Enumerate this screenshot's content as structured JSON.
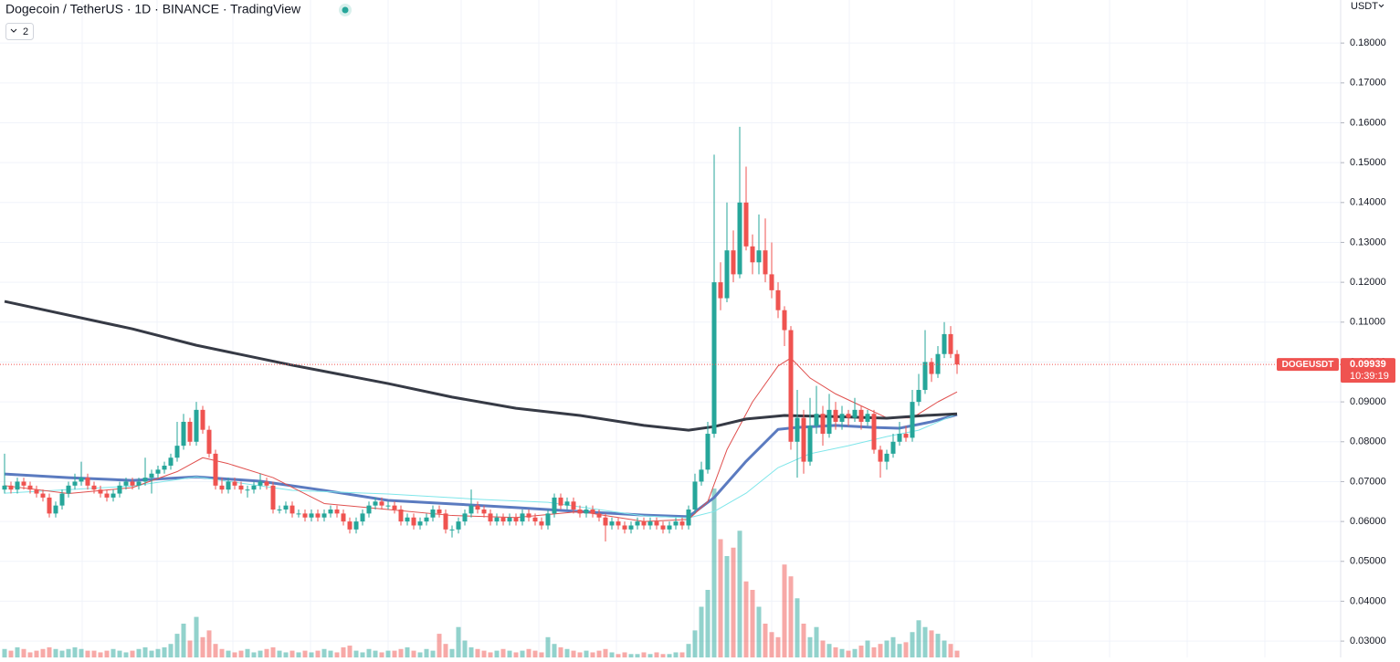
{
  "chart_data": {
    "type": "candlestick",
    "title": "Dogecoin / TetherUS · 1D · BINANCE · TradingView",
    "indicator_count": 2,
    "currency": "USDT",
    "symbol": "DOGEUSDT",
    "last_price": 0.09939,
    "countdown": "10:39:19",
    "up_color": "#26a69a",
    "down_color": "#ef5350",
    "ylim": [
      0.0259,
      0.1908
    ],
    "yticks": [
      {
        "value": 0.03,
        "label": "0.03000"
      },
      {
        "value": 0.04,
        "label": "0.04000"
      },
      {
        "value": 0.05,
        "label": "0.05000"
      },
      {
        "value": 0.06,
        "label": "0.06000"
      },
      {
        "value": 0.07,
        "label": "0.07000"
      },
      {
        "value": 0.08,
        "label": "0.08000"
      },
      {
        "value": 0.09,
        "label": "0.09000"
      },
      {
        "value": 0.1,
        "label": "0.10000"
      },
      {
        "value": 0.11,
        "label": "0.11000"
      },
      {
        "value": 0.12,
        "label": "0.12000"
      },
      {
        "value": 0.13,
        "label": "0.13000"
      },
      {
        "value": 0.14,
        "label": "0.14000"
      },
      {
        "value": 0.15,
        "label": "0.15000"
      },
      {
        "value": 0.16,
        "label": "0.16000"
      },
      {
        "value": 0.17,
        "label": "0.17000"
      },
      {
        "value": 0.18,
        "label": "0.18000"
      }
    ],
    "grid": true,
    "ohlc": [
      [
        0.068,
        0.077,
        0.067,
        0.069
      ],
      [
        0.069,
        0.07,
        0.067,
        0.068
      ],
      [
        0.068,
        0.071,
        0.067,
        0.07
      ],
      [
        0.07,
        0.071,
        0.068,
        0.069
      ],
      [
        0.069,
        0.07,
        0.067,
        0.068
      ],
      [
        0.068,
        0.069,
        0.066,
        0.067
      ],
      [
        0.067,
        0.068,
        0.065,
        0.066
      ],
      [
        0.066,
        0.067,
        0.061,
        0.062
      ],
      [
        0.062,
        0.065,
        0.061,
        0.064
      ],
      [
        0.064,
        0.068,
        0.063,
        0.067
      ],
      [
        0.067,
        0.07,
        0.066,
        0.069
      ],
      [
        0.069,
        0.072,
        0.068,
        0.07
      ],
      [
        0.07,
        0.075,
        0.069,
        0.071
      ],
      [
        0.071,
        0.072,
        0.068,
        0.069
      ],
      [
        0.069,
        0.07,
        0.067,
        0.068
      ],
      [
        0.068,
        0.069,
        0.066,
        0.067
      ],
      [
        0.067,
        0.068,
        0.065,
        0.066
      ],
      [
        0.066,
        0.068,
        0.065,
        0.067
      ],
      [
        0.067,
        0.07,
        0.066,
        0.069
      ],
      [
        0.069,
        0.071,
        0.068,
        0.07
      ],
      [
        0.07,
        0.071,
        0.068,
        0.069
      ],
      [
        0.069,
        0.071,
        0.068,
        0.07
      ],
      [
        0.07,
        0.076,
        0.069,
        0.071
      ],
      [
        0.071,
        0.073,
        0.067,
        0.072
      ],
      [
        0.072,
        0.074,
        0.071,
        0.073
      ],
      [
        0.073,
        0.075,
        0.072,
        0.074
      ],
      [
        0.074,
        0.077,
        0.073,
        0.076
      ],
      [
        0.076,
        0.085,
        0.075,
        0.079
      ],
      [
        0.079,
        0.087,
        0.078,
        0.085
      ],
      [
        0.085,
        0.086,
        0.079,
        0.08
      ],
      [
        0.08,
        0.09,
        0.079,
        0.088
      ],
      [
        0.088,
        0.089,
        0.082,
        0.083
      ],
      [
        0.083,
        0.084,
        0.076,
        0.077
      ],
      [
        0.077,
        0.078,
        0.068,
        0.069
      ],
      [
        0.069,
        0.071,
        0.067,
        0.068
      ],
      [
        0.068,
        0.071,
        0.067,
        0.07
      ],
      [
        0.07,
        0.071,
        0.068,
        0.069
      ],
      [
        0.069,
        0.07,
        0.067,
        0.068
      ],
      [
        0.068,
        0.069,
        0.066,
        0.068
      ],
      [
        0.068,
        0.07,
        0.067,
        0.069
      ],
      [
        0.069,
        0.072,
        0.068,
        0.07
      ],
      [
        0.07,
        0.071,
        0.068,
        0.069
      ],
      [
        0.069,
        0.07,
        0.062,
        0.063
      ],
      [
        0.063,
        0.064,
        0.062,
        0.063
      ],
      [
        0.063,
        0.065,
        0.062,
        0.064
      ],
      [
        0.064,
        0.065,
        0.061,
        0.062
      ],
      [
        0.062,
        0.063,
        0.061,
        0.062
      ],
      [
        0.062,
        0.063,
        0.06,
        0.061
      ],
      [
        0.061,
        0.063,
        0.06,
        0.062
      ],
      [
        0.062,
        0.063,
        0.06,
        0.061
      ],
      [
        0.061,
        0.063,
        0.06,
        0.062
      ],
      [
        0.062,
        0.064,
        0.061,
        0.063
      ],
      [
        0.063,
        0.064,
        0.061,
        0.062
      ],
      [
        0.062,
        0.063,
        0.059,
        0.06
      ],
      [
        0.06,
        0.061,
        0.057,
        0.058
      ],
      [
        0.058,
        0.061,
        0.057,
        0.06
      ],
      [
        0.06,
        0.063,
        0.059,
        0.062
      ],
      [
        0.062,
        0.065,
        0.061,
        0.064
      ],
      [
        0.064,
        0.066,
        0.063,
        0.065
      ],
      [
        0.065,
        0.066,
        0.063,
        0.064
      ],
      [
        0.064,
        0.065,
        0.063,
        0.064
      ],
      [
        0.064,
        0.065,
        0.062,
        0.063
      ],
      [
        0.063,
        0.064,
        0.059,
        0.06
      ],
      [
        0.06,
        0.062,
        0.059,
        0.061
      ],
      [
        0.061,
        0.062,
        0.058,
        0.059
      ],
      [
        0.059,
        0.061,
        0.058,
        0.06
      ],
      [
        0.06,
        0.062,
        0.059,
        0.061
      ],
      [
        0.061,
        0.064,
        0.06,
        0.063
      ],
      [
        0.063,
        0.064,
        0.061,
        0.062
      ],
      [
        0.062,
        0.063,
        0.057,
        0.058
      ],
      [
        0.058,
        0.059,
        0.056,
        0.058
      ],
      [
        0.058,
        0.061,
        0.057,
        0.06
      ],
      [
        0.06,
        0.063,
        0.059,
        0.062
      ],
      [
        0.062,
        0.068,
        0.061,
        0.064
      ],
      [
        0.064,
        0.065,
        0.062,
        0.063
      ],
      [
        0.063,
        0.064,
        0.061,
        0.062
      ],
      [
        0.062,
        0.063,
        0.059,
        0.06
      ],
      [
        0.06,
        0.062,
        0.059,
        0.061
      ],
      [
        0.061,
        0.062,
        0.059,
        0.06
      ],
      [
        0.06,
        0.062,
        0.059,
        0.061
      ],
      [
        0.061,
        0.062,
        0.059,
        0.06
      ],
      [
        0.06,
        0.063,
        0.059,
        0.062
      ],
      [
        0.062,
        0.063,
        0.06,
        0.061
      ],
      [
        0.061,
        0.062,
        0.059,
        0.06
      ],
      [
        0.06,
        0.061,
        0.058,
        0.059
      ],
      [
        0.059,
        0.063,
        0.058,
        0.062
      ],
      [
        0.062,
        0.067,
        0.061,
        0.066
      ],
      [
        0.066,
        0.067,
        0.063,
        0.064
      ],
      [
        0.064,
        0.066,
        0.063,
        0.065
      ],
      [
        0.065,
        0.066,
        0.062,
        0.063
      ],
      [
        0.063,
        0.064,
        0.061,
        0.062
      ],
      [
        0.062,
        0.064,
        0.061,
        0.063
      ],
      [
        0.063,
        0.064,
        0.061,
        0.062
      ],
      [
        0.062,
        0.063,
        0.06,
        0.061
      ],
      [
        0.061,
        0.062,
        0.055,
        0.059
      ],
      [
        0.059,
        0.061,
        0.058,
        0.06
      ],
      [
        0.06,
        0.061,
        0.058,
        0.059
      ],
      [
        0.059,
        0.06,
        0.057,
        0.058
      ],
      [
        0.058,
        0.06,
        0.057,
        0.059
      ],
      [
        0.059,
        0.061,
        0.058,
        0.06
      ],
      [
        0.06,
        0.061,
        0.058,
        0.059
      ],
      [
        0.059,
        0.061,
        0.058,
        0.06
      ],
      [
        0.06,
        0.061,
        0.058,
        0.059
      ],
      [
        0.059,
        0.06,
        0.057,
        0.058
      ],
      [
        0.058,
        0.06,
        0.057,
        0.059
      ],
      [
        0.059,
        0.061,
        0.058,
        0.06
      ],
      [
        0.06,
        0.061,
        0.058,
        0.059
      ],
      [
        0.059,
        0.064,
        0.058,
        0.063
      ],
      [
        0.063,
        0.072,
        0.062,
        0.07
      ],
      [
        0.07,
        0.075,
        0.069,
        0.073
      ],
      [
        0.073,
        0.085,
        0.072,
        0.082
      ],
      [
        0.082,
        0.152,
        0.081,
        0.12
      ],
      [
        0.12,
        0.125,
        0.113,
        0.116
      ],
      [
        0.116,
        0.14,
        0.115,
        0.128
      ],
      [
        0.128,
        0.133,
        0.12,
        0.122
      ],
      [
        0.122,
        0.159,
        0.121,
        0.14
      ],
      [
        0.14,
        0.149,
        0.128,
        0.129
      ],
      [
        0.129,
        0.132,
        0.122,
        0.125
      ],
      [
        0.125,
        0.137,
        0.122,
        0.128
      ],
      [
        0.128,
        0.136,
        0.12,
        0.122
      ],
      [
        0.122,
        0.13,
        0.116,
        0.118
      ],
      [
        0.118,
        0.12,
        0.111,
        0.113
      ],
      [
        0.113,
        0.114,
        0.104,
        0.108
      ],
      [
        0.108,
        0.109,
        0.078,
        0.08
      ],
      [
        0.08,
        0.093,
        0.071,
        0.086
      ],
      [
        0.086,
        0.088,
        0.072,
        0.075
      ],
      [
        0.075,
        0.091,
        0.074,
        0.084
      ],
      [
        0.084,
        0.094,
        0.082,
        0.087
      ],
      [
        0.087,
        0.089,
        0.079,
        0.082
      ],
      [
        0.082,
        0.092,
        0.081,
        0.088
      ],
      [
        0.088,
        0.09,
        0.083,
        0.085
      ],
      [
        0.085,
        0.089,
        0.083,
        0.087
      ],
      [
        0.087,
        0.088,
        0.084,
        0.086
      ],
      [
        0.086,
        0.091,
        0.085,
        0.088
      ],
      [
        0.088,
        0.089,
        0.083,
        0.085
      ],
      [
        0.085,
        0.088,
        0.084,
        0.087
      ],
      [
        0.087,
        0.088,
        0.077,
        0.078
      ],
      [
        0.078,
        0.079,
        0.071,
        0.075
      ],
      [
        0.075,
        0.078,
        0.073,
        0.077
      ],
      [
        0.077,
        0.082,
        0.076,
        0.08
      ],
      [
        0.08,
        0.085,
        0.079,
        0.082
      ],
      [
        0.082,
        0.084,
        0.08,
        0.081
      ],
      [
        0.081,
        0.093,
        0.08,
        0.09
      ],
      [
        0.09,
        0.097,
        0.089,
        0.093
      ],
      [
        0.093,
        0.108,
        0.092,
        0.1
      ],
      [
        0.1,
        0.101,
        0.095,
        0.097
      ],
      [
        0.097,
        0.104,
        0.096,
        0.102
      ],
      [
        0.102,
        0.11,
        0.101,
        0.107
      ],
      [
        0.107,
        0.109,
        0.101,
        0.102
      ],
      [
        0.102,
        0.103,
        0.097,
        0.09939
      ]
    ],
    "volume": [
      5,
      4,
      6,
      5,
      3,
      4,
      5,
      6,
      5,
      4,
      5,
      6,
      5,
      4,
      4,
      3,
      4,
      5,
      4,
      3,
      4,
      5,
      6,
      4,
      5,
      6,
      8,
      14,
      20,
      10,
      24,
      12,
      16,
      8,
      5,
      4,
      3,
      4,
      5,
      3,
      4,
      5,
      6,
      4,
      3,
      4,
      3,
      4,
      3,
      4,
      5,
      4,
      3,
      6,
      7,
      4,
      3,
      5,
      4,
      3,
      4,
      4,
      5,
      6,
      4,
      3,
      5,
      4,
      14,
      8,
      5,
      18,
      10,
      6,
      5,
      4,
      3,
      4,
      5,
      4,
      3,
      4,
      5,
      4,
      3,
      12,
      8,
      6,
      5,
      4,
      3,
      4,
      3,
      4,
      5,
      3,
      2,
      3,
      2,
      2,
      3,
      2,
      3,
      2,
      2,
      3,
      3,
      8,
      16,
      30,
      40,
      100,
      70,
      60,
      65,
      75,
      45,
      40,
      30,
      20,
      15,
      12,
      55,
      48,
      35,
      20,
      12,
      18,
      10,
      8,
      6,
      5,
      4,
      5,
      7,
      10,
      6,
      8,
      10,
      12,
      8,
      9,
      15,
      22,
      18,
      16,
      14,
      10,
      8,
      4
    ],
    "series": [
      {
        "color": "#5b7bc0",
        "x": [
          0,
          10,
          20,
          30,
          40,
          50,
          60,
          70,
          80,
          90,
          100,
          107,
          111,
          116,
          121,
          124,
          130,
          136,
          140,
          145,
          149
        ],
        "values": [
          0.0719,
          0.071,
          0.0703,
          0.0712,
          0.0701,
          0.0678,
          0.0653,
          0.0644,
          0.0635,
          0.0625,
          0.0616,
          0.0612,
          0.066,
          0.0751,
          0.0831,
          0.0836,
          0.0841,
          0.0836,
          0.0834,
          0.085,
          0.0868
        ]
      },
      {
        "color": "#7fe6ea",
        "x": [
          0,
          20,
          30,
          45,
          60,
          75,
          85,
          100,
          107,
          111,
          116,
          121,
          126,
          132,
          138,
          143,
          149
        ],
        "values": [
          0.0671,
          0.0689,
          0.0712,
          0.0678,
          0.0669,
          0.0655,
          0.0648,
          0.0614,
          0.0609,
          0.0625,
          0.0671,
          0.0735,
          0.077,
          0.079,
          0.0813,
          0.0829,
          0.087
        ]
      },
      {
        "color": "#e0504e",
        "x": [
          0,
          10,
          20,
          27,
          31,
          35,
          42,
          50,
          60,
          70,
          80,
          90,
          100,
          107,
          110,
          113,
          117,
          121,
          123,
          126,
          130,
          134,
          138,
          142,
          146,
          149
        ],
        "values": [
          0.069,
          0.067,
          0.0685,
          0.0725,
          0.076,
          0.0745,
          0.071,
          0.0645,
          0.063,
          0.0615,
          0.061,
          0.0625,
          0.06,
          0.0605,
          0.065,
          0.078,
          0.09,
          0.099,
          0.101,
          0.096,
          0.092,
          0.089,
          0.086,
          0.086,
          0.09,
          0.0925
        ]
      },
      {
        "color": "#363a45",
        "x": [
          0,
          20,
          30,
          45,
          60,
          70,
          80,
          90,
          100,
          107,
          111,
          116,
          122,
          130,
          138,
          144,
          149
        ],
        "values": [
          0.1152,
          0.1083,
          0.1042,
          0.0992,
          0.0946,
          0.0912,
          0.0884,
          0.0866,
          0.0841,
          0.0829,
          0.0838,
          0.0857,
          0.0866,
          0.0863,
          0.0859,
          0.0866,
          0.087
        ]
      }
    ]
  }
}
